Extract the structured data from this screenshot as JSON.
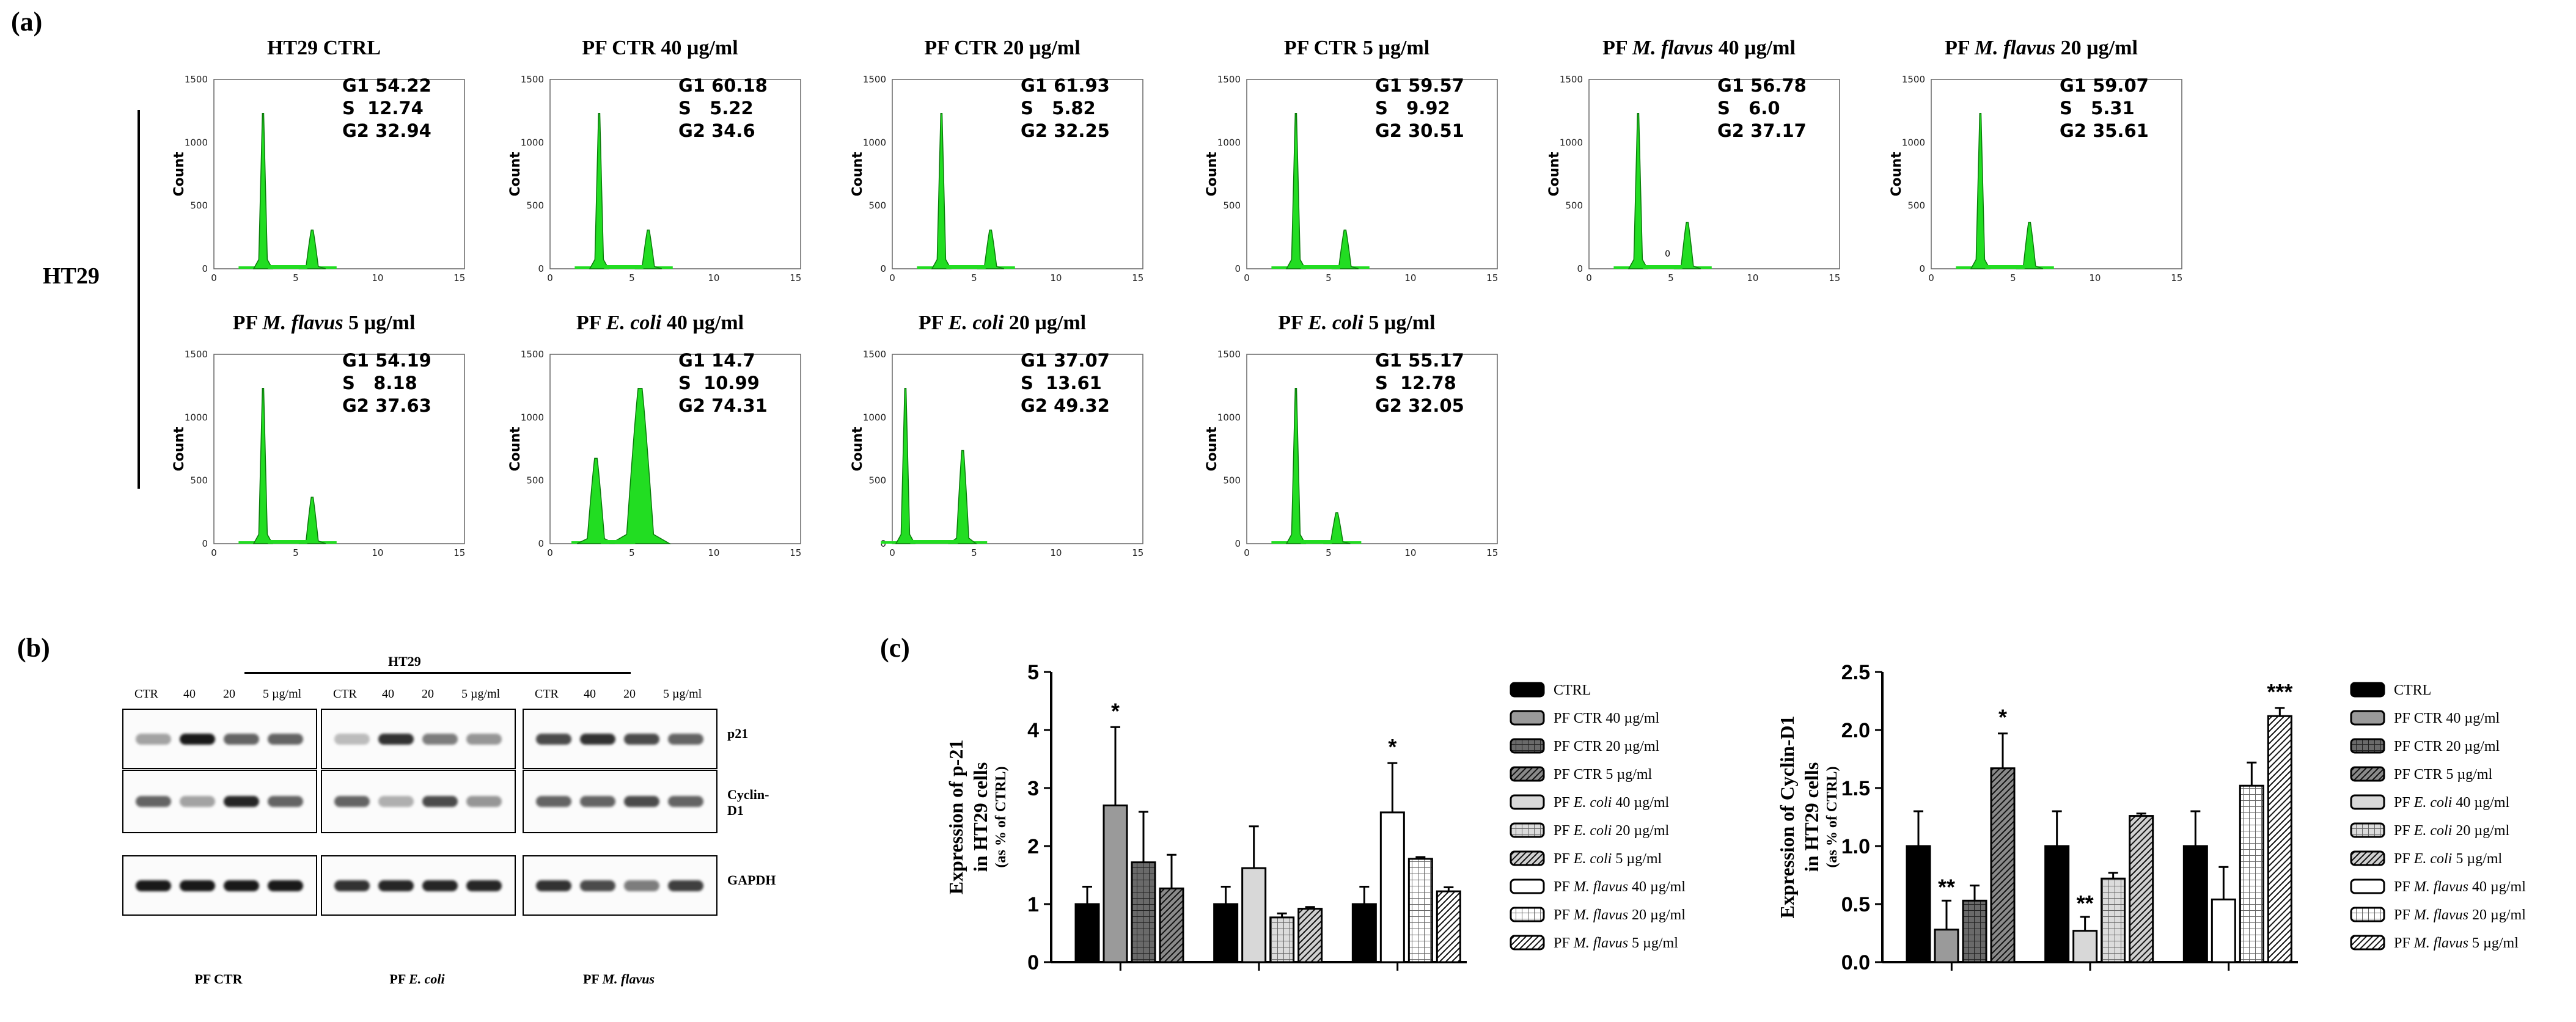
{
  "labels": {
    "a": "(a)",
    "b": "(b)",
    "c": "(c)"
  },
  "row_label": "HT29",
  "flow": [
    {
      "title": "HT29 CTRL",
      "g1": "G1 54.22",
      "s": "S  12.74",
      "g2": "G2 32.94",
      "yticks": [
        "1500",
        "1000",
        "500",
        "0"
      ],
      "xticks": [
        "0",
        "5",
        "10",
        "15"
      ],
      "g1_height": 1.0,
      "g2_height": 0.25,
      "g1_pos": 3.0,
      "g2_pos": 6.0,
      "ylabel": "Count"
    },
    {
      "title": "PF CTR 40 µg/ml",
      "g1": "G1 60.18",
      "s": "S   5.22",
      "g2": "G2 34.6",
      "yticks": [
        "1500",
        "1000",
        "500",
        "0"
      ],
      "xticks": [
        "0",
        "5",
        "10",
        "15"
      ],
      "g1_height": 1.0,
      "g2_height": 0.25,
      "g1_pos": 3.0,
      "g2_pos": 6.0,
      "ylabel": "Count"
    },
    {
      "title": "PF CTR 20 µg/ml",
      "g1": "G1 61.93",
      "s": "S   5.82",
      "g2": "G2 32.25",
      "yticks": [
        "1500",
        "1000",
        "500",
        "0"
      ],
      "xticks": [
        "0",
        "5",
        "10",
        "15"
      ],
      "g1_height": 1.0,
      "g2_height": 0.25,
      "g1_pos": 3.0,
      "g2_pos": 6.0,
      "ylabel": "Count"
    },
    {
      "title": "PF CTR 5 µg/ml",
      "g1": "G1 59.57",
      "s": "S   9.92",
      "g2": "G2 30.51",
      "yticks": [
        "1500",
        "1000",
        "500",
        "0"
      ],
      "xticks": [
        "0",
        "5",
        "10",
        "15"
      ],
      "g1_height": 1.0,
      "g2_height": 0.25,
      "g1_pos": 3.0,
      "g2_pos": 6.0,
      "ylabel": "Count"
    },
    {
      "title_pre": "PF ",
      "title_italic": "M. flavus",
      "title_post": " 40 µg/ml",
      "g1": "G1 56.78",
      "s": "S   6.0",
      "g2": "G2 37.17",
      "yticks": [
        "1500",
        "1000",
        "500",
        "0"
      ],
      "xticks": [
        "0",
        "5",
        "10",
        "15"
      ],
      "g1_height": 1.0,
      "g2_height": 0.3,
      "g1_pos": 3.0,
      "g2_pos": 6.0,
      "ylabel": "Count",
      "marker": "0"
    },
    {
      "title_pre": "PF ",
      "title_italic": "M. flavus",
      "title_post": " 20 µg/ml",
      "g1": "G1 59.07",
      "s": "S   5.31",
      "g2": "G2 35.61",
      "yticks": [
        "1500",
        "1000",
        "500",
        "0"
      ],
      "xticks": [
        "0",
        "5",
        "10",
        "15"
      ],
      "g1_height": 1.0,
      "g2_height": 0.3,
      "g1_pos": 3.0,
      "g2_pos": 6.0,
      "ylabel": "Count"
    },
    {
      "title_pre": "PF ",
      "title_italic": "M. flavus",
      "title_post": " 5 µg/ml",
      "g1": "G1 54.19",
      "s": "S   8.18",
      "g2": "G2 37.63",
      "yticks": [
        "1500",
        "1000",
        "500",
        "0"
      ],
      "xticks": [
        "0",
        "5",
        "10",
        "15"
      ],
      "g1_height": 1.0,
      "g2_height": 0.3,
      "g1_pos": 3.0,
      "g2_pos": 6.0,
      "ylabel": "Count"
    },
    {
      "title_pre": "PF ",
      "title_italic": "E. coli",
      "title_post": " 40 µg/ml",
      "g1": "G1 14.7",
      "s": "S  10.99",
      "g2": "G2 74.31",
      "yticks": [
        "1500",
        "1000",
        "500",
        "0"
      ],
      "xticks": [
        "0",
        "5",
        "10",
        "15"
      ],
      "g1_height": 0.55,
      "g2_height": 1.0,
      "g1_pos": 2.8,
      "g2_pos": 5.5,
      "ylabel": "Count"
    },
    {
      "title_pre": "PF ",
      "title_italic": "E. coli",
      "title_post": " 20 µg/ml",
      "g1": "G1 37.07",
      "s": "S  13.61",
      "g2": "G2 49.32",
      "yticks": [
        "1500",
        "1000",
        "500",
        "0"
      ],
      "xticks": [
        "0",
        "5",
        "10",
        "15"
      ],
      "g1_height": 1.0,
      "g2_height": 0.6,
      "g1_pos": 0.8,
      "g2_pos": 4.3,
      "ylabel": "Count"
    },
    {
      "title_pre": "PF ",
      "title_italic": "E. coli",
      "title_post": " 5 µg/ml",
      "g1": "G1 55.17",
      "s": "S  12.78",
      "g2": "G2 32.05",
      "yticks": [
        "1500",
        "1000",
        "500",
        "0"
      ],
      "xticks": [
        "0",
        "5",
        "10",
        "15"
      ],
      "g1_height": 1.0,
      "g2_height": 0.2,
      "g1_pos": 3.0,
      "g2_pos": 5.5,
      "ylabel": "Count"
    }
  ],
  "blot": {
    "header": "HT29",
    "lanes": [
      "CTR",
      "40",
      "20",
      "5 µg/ml"
    ],
    "proteins": [
      "p21",
      "Cyclin-D1",
      "GAPDH"
    ],
    "groups": [
      {
        "pre": "PF CTR",
        "italic": ""
      },
      {
        "pre": "PF ",
        "italic": "E. coli"
      },
      {
        "pre": "PF ",
        "italic": "M. flavus"
      }
    ]
  },
  "chart_data": [
    {
      "type": "bar",
      "ylabel_line1": "Expression of p-21",
      "ylabel_line2": "in HT29 cells",
      "ylabel_line3": "(as % of CTRL)",
      "ylim": [
        0,
        5
      ],
      "yticks": [
        "0",
        "1",
        "2",
        "3",
        "4",
        "5"
      ],
      "groups": [
        {
          "series": [
            "CTRL",
            "PF CTR 40 µg/ml",
            "PF CTR 20 µg/ml",
            "PF CTR 5 µg/ml"
          ],
          "values": [
            1.0,
            2.7,
            1.72,
            1.27
          ],
          "errors": [
            0.3,
            1.35,
            0.87,
            0.58
          ],
          "sig": [
            "",
            "*",
            "",
            ""
          ]
        },
        {
          "series": [
            "CTRL",
            "PF E. coli 40 µg/ml",
            "PF E. coli 20 µg/ml",
            "PF E. coli 5 µg/ml"
          ],
          "values": [
            1.0,
            1.62,
            0.77,
            0.92
          ],
          "errors": [
            0.3,
            0.72,
            0.07,
            0.03
          ],
          "sig": [
            "",
            "",
            "",
            ""
          ]
        },
        {
          "series": [
            "CTRL",
            "PF M. flavus 40 µg/ml",
            "PF M. flavus 20 µg/ml",
            "PF M. flavus 5 µg/ml"
          ],
          "values": [
            1.0,
            2.58,
            1.78,
            1.22
          ],
          "errors": [
            0.3,
            0.85,
            0.03,
            0.07
          ],
          "sig": [
            "",
            "*",
            "",
            ""
          ]
        }
      ]
    },
    {
      "type": "bar",
      "ylabel_line1": "Expression of Cyclin-D1",
      "ylabel_line2": "in HT29 cells",
      "ylabel_line3": "(as % of CTRL)",
      "ylim": [
        0,
        2.5
      ],
      "yticks": [
        "0.0",
        "0.5",
        "1.0",
        "1.5",
        "2.0",
        "2.5"
      ],
      "groups": [
        {
          "series": [
            "CTRL",
            "PF CTR 40 µg/ml",
            "PF CTR 20 µg/ml",
            "PF CTR 5 µg/ml"
          ],
          "values": [
            1.0,
            0.28,
            0.53,
            1.67
          ],
          "errors": [
            0.3,
            0.25,
            0.13,
            0.3
          ],
          "sig": [
            "",
            "**",
            "",
            "*"
          ]
        },
        {
          "series": [
            "CTRL",
            "PF E. coli 40 µg/ml",
            "PF E. coli 20 µg/ml",
            "PF E. coli 5 µg/ml"
          ],
          "values": [
            1.0,
            0.27,
            0.72,
            1.26
          ],
          "errors": [
            0.3,
            0.12,
            0.05,
            0.02
          ],
          "sig": [
            "",
            "**",
            "",
            ""
          ]
        },
        {
          "series": [
            "CTRL",
            "PF M. flavus 40 µg/ml",
            "PF M. flavus 20 µg/ml",
            "PF M. flavus 5 µg/ml"
          ],
          "values": [
            1.0,
            0.54,
            1.52,
            2.12
          ],
          "errors": [
            0.3,
            0.28,
            0.2,
            0.07
          ],
          "sig": [
            "",
            "",
            "",
            "***"
          ]
        }
      ]
    }
  ],
  "legend": [
    {
      "pre": "CTRL",
      "italic": "",
      "post": "",
      "pattern": "black"
    },
    {
      "pre": "PF CTR 40 µg/ml",
      "italic": "",
      "post": "",
      "pattern": "gray"
    },
    {
      "pre": "PF CTR 20 µg/ml",
      "italic": "",
      "post": "",
      "pattern": "darkcheck"
    },
    {
      "pre": "PF CTR 5 µg/ml",
      "italic": "",
      "post": "",
      "pattern": "darkdiag"
    },
    {
      "pre": "PF ",
      "italic": "E. coli",
      "post": " 40 µg/ml",
      "pattern": "lightgray"
    },
    {
      "pre": "PF ",
      "italic": "E. coli",
      "post": " 20 µg/ml",
      "pattern": "lightcheck"
    },
    {
      "pre": "PF ",
      "italic": "E. coli",
      "post": " 5 µg/ml",
      "pattern": "lightdiag"
    },
    {
      "pre": "PF ",
      "italic": "M. flavus",
      "post": " 40 µg/ml",
      "pattern": "white"
    },
    {
      "pre": "PF ",
      "italic": "M. flavus",
      "post": " 20 µg/ml",
      "pattern": "grid"
    },
    {
      "pre": "PF ",
      "italic": "M. flavus",
      "post": " 5 µg/ml",
      "pattern": "whitediag"
    }
  ],
  "colors": {
    "histogram_fill": "#22dd22",
    "histogram_edge": "#0a7a0a",
    "bar_black": "#000000",
    "bar_gray": "#9a9a9a"
  }
}
